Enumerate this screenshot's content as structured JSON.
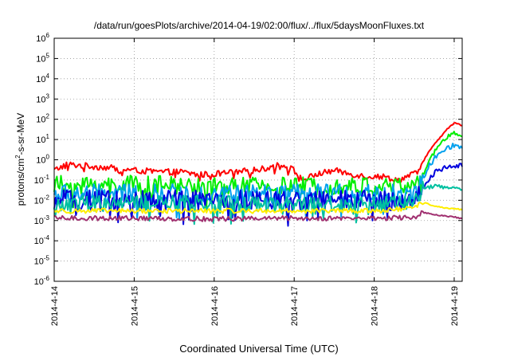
{
  "chart_data": {
    "type": "line",
    "title": "/data/run/goesPlots/archive/2014-04-19/02:00/flux/../flux/5daysMoonFluxes.txt",
    "xlabel": "Coordinated Universal Time (UTC)",
    "ylabel": {
      "base": "protons/cm",
      "sup": "2",
      "rest": "-s-sr-MeV"
    },
    "scale": "log",
    "grid": true,
    "xlim": [
      0,
      5.1
    ],
    "xticks": [
      {
        "x": 0,
        "label": "2014-4-14"
      },
      {
        "x": 1,
        "label": "2014-4-15"
      },
      {
        "x": 2,
        "label": "2014-4-16"
      },
      {
        "x": 3,
        "label": "2014-4-17"
      },
      {
        "x": 4,
        "label": "2014-4-18"
      },
      {
        "x": 5,
        "label": "2014-4-19"
      }
    ],
    "yticks": [
      {
        "exp": -6,
        "base": "10",
        "sup": "-6"
      },
      {
        "exp": -5,
        "base": "10",
        "sup": "-5"
      },
      {
        "exp": -4,
        "base": "10",
        "sup": "-4"
      },
      {
        "exp": -3,
        "base": "10",
        "sup": "-3"
      },
      {
        "exp": -2,
        "base": "10",
        "sup": "-2"
      },
      {
        "exp": -1,
        "base": "10",
        "sup": "-1"
      },
      {
        "exp": 0,
        "base": "10",
        "sup": "0"
      },
      {
        "exp": 1,
        "base": "10",
        "sup": "1"
      },
      {
        "exp": 2,
        "base": "10",
        "sup": "2"
      },
      {
        "exp": 3,
        "base": "10",
        "sup": "3"
      },
      {
        "exp": 4,
        "base": "10",
        "sup": "4"
      },
      {
        "exp": 5,
        "base": "10",
        "sup": "5"
      },
      {
        "exp": 6,
        "base": "10",
        "sup": "6"
      }
    ],
    "series": [
      {
        "color": "#ff0000",
        "profile": [
          [
            0,
            0.3
          ],
          [
            0.15,
            0.6
          ],
          [
            0.4,
            0.5
          ],
          [
            0.7,
            0.4
          ],
          [
            1.0,
            0.3
          ],
          [
            1.3,
            0.25
          ],
          [
            1.6,
            0.25
          ],
          [
            1.8,
            0.18
          ],
          [
            2.0,
            0.2
          ],
          [
            2.3,
            0.25
          ],
          [
            2.6,
            0.35
          ],
          [
            2.85,
            0.6
          ],
          [
            3.0,
            0.3
          ],
          [
            3.1,
            0.1
          ],
          [
            3.3,
            0.2
          ],
          [
            3.5,
            0.3
          ],
          [
            3.7,
            0.2
          ],
          [
            3.9,
            0.15
          ],
          [
            4.1,
            0.15
          ],
          [
            4.3,
            0.1
          ],
          [
            4.5,
            0.2
          ],
          [
            4.6,
            0.7
          ],
          [
            4.7,
            3
          ],
          [
            4.8,
            10
          ],
          [
            4.9,
            30
          ],
          [
            5.0,
            65
          ],
          [
            5.1,
            50
          ]
        ],
        "noise": 0.15
      },
      {
        "color": "#00ee00",
        "profile": [
          [
            0,
            0.06
          ],
          [
            1.0,
            0.06
          ],
          [
            2.0,
            0.05
          ],
          [
            3.0,
            0.05
          ],
          [
            4.0,
            0.05
          ],
          [
            4.5,
            0.05
          ],
          [
            4.6,
            0.15
          ],
          [
            4.7,
            1
          ],
          [
            4.8,
            5
          ],
          [
            4.9,
            12
          ],
          [
            5.0,
            20
          ],
          [
            5.1,
            15
          ]
        ],
        "noise": 0.45
      },
      {
        "color": "#00a0ee",
        "profile": [
          [
            0,
            0.02
          ],
          [
            1.0,
            0.02
          ],
          [
            2.0,
            0.02
          ],
          [
            3.0,
            0.02
          ],
          [
            4.0,
            0.02
          ],
          [
            4.5,
            0.02
          ],
          [
            4.6,
            0.1
          ],
          [
            4.7,
            0.6
          ],
          [
            4.8,
            2
          ],
          [
            4.9,
            4
          ],
          [
            5.0,
            5
          ],
          [
            5.1,
            4
          ]
        ],
        "noise": 0.5
      },
      {
        "color": "#0000dd",
        "profile": [
          [
            0,
            0.01
          ],
          [
            1.0,
            0.01
          ],
          [
            2.0,
            0.01
          ],
          [
            3.0,
            0.01
          ],
          [
            4.0,
            0.01
          ],
          [
            4.5,
            0.01
          ],
          [
            4.6,
            0.03
          ],
          [
            4.7,
            0.15
          ],
          [
            4.8,
            0.3
          ],
          [
            4.9,
            0.45
          ],
          [
            5.0,
            0.5
          ],
          [
            5.1,
            0.5
          ]
        ],
        "noise": 0.5
      },
      {
        "color": "#00c0a0",
        "profile": [
          [
            0,
            0.007
          ],
          [
            1.0,
            0.007
          ],
          [
            2.0,
            0.007
          ],
          [
            3.0,
            0.007
          ],
          [
            4.0,
            0.007
          ],
          [
            4.5,
            0.007
          ],
          [
            4.6,
            0.04
          ],
          [
            4.8,
            0.05
          ],
          [
            5.0,
            0.04
          ],
          [
            5.1,
            0.035
          ]
        ],
        "noise": 0.4
      },
      {
        "color": "#ffee00",
        "profile": [
          [
            0,
            0.003
          ],
          [
            1.0,
            0.003
          ],
          [
            2.0,
            0.003
          ],
          [
            3.0,
            0.003
          ],
          [
            4.0,
            0.003
          ],
          [
            4.5,
            0.004
          ],
          [
            4.6,
            0.008
          ],
          [
            4.7,
            0.006
          ],
          [
            4.9,
            0.004
          ],
          [
            5.1,
            0.0035
          ]
        ],
        "noise": 0.12
      },
      {
        "color": "#a03070",
        "profile": [
          [
            0,
            0.0013
          ],
          [
            1.0,
            0.0013
          ],
          [
            2.0,
            0.0012
          ],
          [
            3.0,
            0.0013
          ],
          [
            4.0,
            0.0013
          ],
          [
            4.5,
            0.0014
          ],
          [
            4.6,
            0.0025
          ],
          [
            4.8,
            0.0018
          ],
          [
            5.0,
            0.0015
          ],
          [
            5.1,
            0.0012
          ]
        ],
        "noise": 0.12
      }
    ]
  }
}
